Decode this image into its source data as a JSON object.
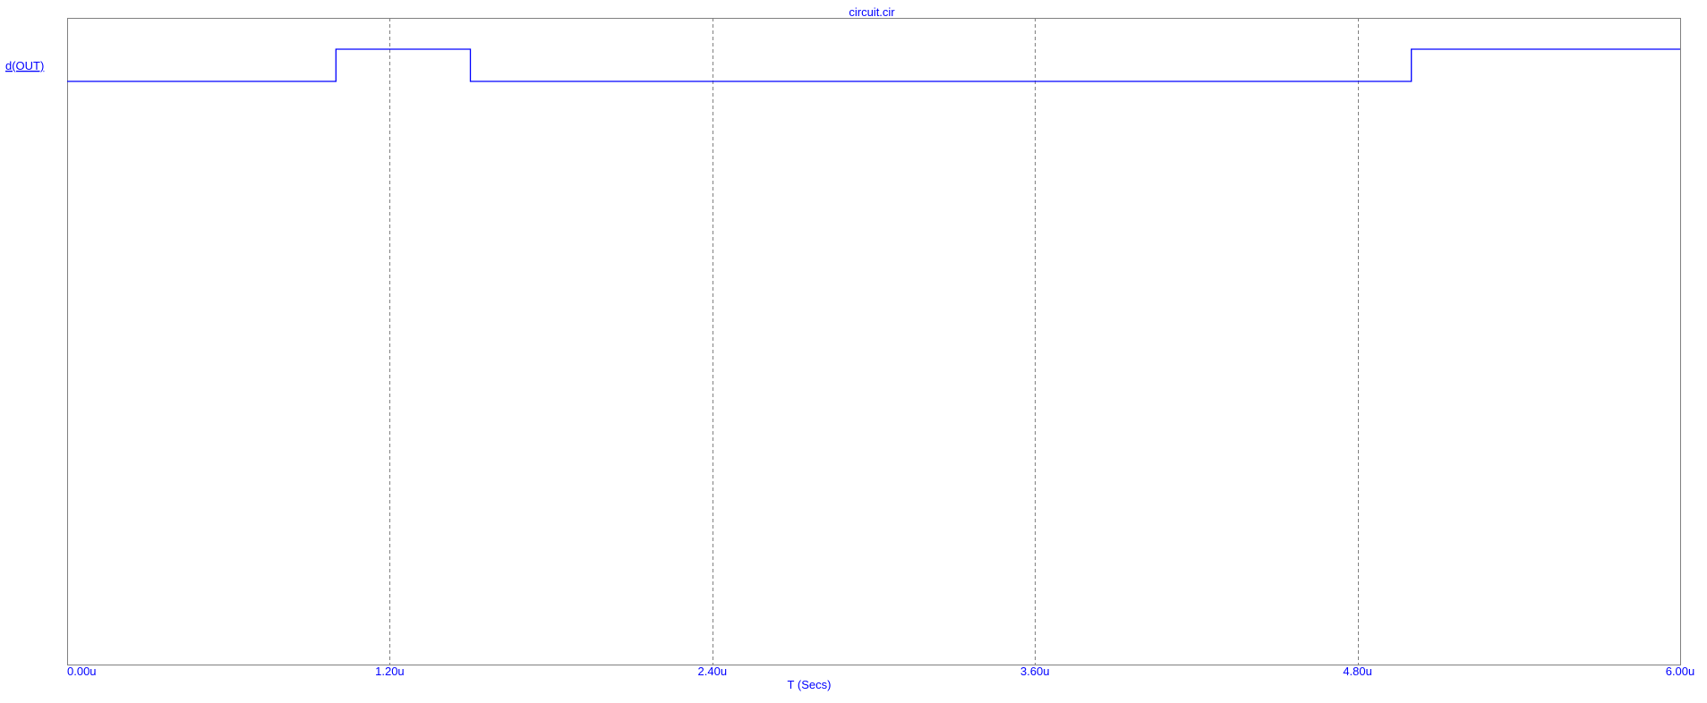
{
  "chart_data": {
    "type": "line",
    "title": "circuit.cir",
    "xlabel": "T (Secs)",
    "ylabel": "",
    "xlim": [
      0,
      6.0
    ],
    "x_unit": "u",
    "x_ticks": [
      "0.00u",
      "1.20u",
      "2.40u",
      "3.60u",
      "4.80u",
      "6.00u"
    ],
    "x_tick_values": [
      0,
      1.2,
      2.4,
      3.6,
      4.8,
      6.0
    ],
    "grid": "vertical dashed",
    "series": [
      {
        "name": "d(OUT)",
        "kind": "digital-step",
        "x": [
          0,
          1.0,
          1.0,
          1.5,
          1.5,
          5.0,
          5.0,
          6.0
        ],
        "y": [
          0,
          0,
          1,
          1,
          0,
          0,
          1,
          1
        ]
      }
    ]
  },
  "colors": {
    "trace": "#0000ff",
    "text": "#0000ff",
    "frame": "#808080",
    "grid": "#808080",
    "background": "#ffffff"
  }
}
